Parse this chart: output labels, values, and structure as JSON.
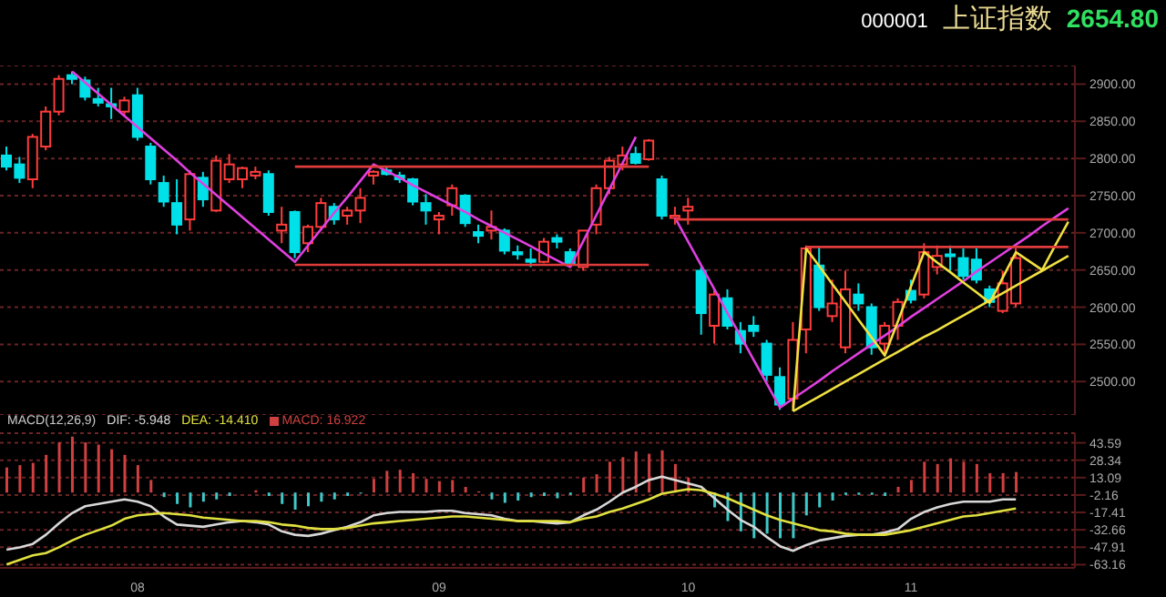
{
  "chart_data": [
    {
      "type": "candlestick",
      "title": "上证指数",
      "subtitle": "000001",
      "annotations": [
        "2654.80"
      ],
      "categories": [
        null,
        null,
        null,
        null,
        null,
        null,
        null,
        null,
        null,
        null,
        null,
        null,
        null,
        null,
        null,
        null,
        null,
        null,
        null,
        null,
        null,
        null,
        null,
        null,
        null,
        null,
        null,
        null,
        null,
        null,
        null,
        null,
        null,
        null,
        null,
        null,
        null,
        null,
        null,
        null,
        null,
        null,
        null,
        null,
        null,
        null,
        null,
        null,
        null,
        null,
        null,
        null,
        null,
        null,
        null,
        null,
        null,
        null,
        null,
        null,
        null,
        null,
        null,
        null,
        null,
        null,
        null,
        null,
        null,
        null,
        null,
        null,
        null,
        null,
        null,
        null,
        null,
        null,
        null,
        null,
        null,
        null
      ],
      "ohlc": [
        [
          2804,
          2816,
          2784,
          2789
        ],
        [
          2792,
          2802,
          2767,
          2774
        ],
        [
          2772,
          2833,
          2760,
          2829
        ],
        [
          2816,
          2870,
          2811,
          2863
        ],
        [
          2863,
          2912,
          2858,
          2907
        ],
        [
          2912,
          2917,
          2900,
          2907
        ],
        [
          2905,
          2910,
          2878,
          2883
        ],
        [
          2880,
          2895,
          2870,
          2875
        ],
        [
          2873,
          2895,
          2853,
          2870
        ],
        [
          2863,
          2883,
          2858,
          2878
        ],
        [
          2885,
          2895,
          2824,
          2829
        ],
        [
          2816,
          2821,
          2765,
          2772
        ],
        [
          2767,
          2777,
          2735,
          2742
        ],
        [
          2740,
          2772,
          2698,
          2711
        ],
        [
          2718,
          2784,
          2703,
          2779
        ],
        [
          2774,
          2782,
          2735,
          2745
        ],
        [
          2730,
          2804,
          2728,
          2797
        ],
        [
          2772,
          2806,
          2767,
          2792
        ],
        [
          2772,
          2789,
          2760,
          2787
        ],
        [
          2777,
          2789,
          2772,
          2782
        ],
        [
          2779,
          2784,
          2723,
          2728
        ],
        [
          2703,
          2735,
          2686,
          2711
        ],
        [
          2728,
          2730,
          2666,
          2674
        ],
        [
          2686,
          2711,
          2674,
          2708
        ],
        [
          2708,
          2747,
          2703,
          2740
        ],
        [
          2735,
          2740,
          2711,
          2718
        ],
        [
          2723,
          2735,
          2711,
          2730
        ],
        [
          2730,
          2760,
          2713,
          2747
        ],
        [
          2777,
          2784,
          2765,
          2782
        ],
        [
          2784,
          2789,
          2777,
          2779
        ],
        [
          2777,
          2782,
          2767,
          2772
        ],
        [
          2772,
          2774,
          2737,
          2742
        ],
        [
          2740,
          2752,
          2711,
          2730
        ],
        [
          2718,
          2728,
          2698,
          2723
        ],
        [
          2737,
          2765,
          2723,
          2760
        ],
        [
          2750,
          2752,
          2708,
          2713
        ],
        [
          2701,
          2711,
          2686,
          2696
        ],
        [
          2703,
          2730,
          2691,
          2708
        ],
        [
          2703,
          2706,
          2671,
          2676
        ],
        [
          2674,
          2683,
          2664,
          2671
        ],
        [
          2664,
          2679,
          2654,
          2661
        ],
        [
          2661,
          2693,
          2659,
          2688
        ],
        [
          2693,
          2698,
          2679,
          2688
        ],
        [
          2674,
          2679,
          2654,
          2659
        ],
        [
          2654,
          2703,
          2649,
          2703
        ],
        [
          2711,
          2765,
          2698,
          2760
        ],
        [
          2760,
          2802,
          2752,
          2797
        ],
        [
          2792,
          2816,
          2784,
          2804
        ],
        [
          2806,
          2816,
          2792,
          2794
        ],
        [
          2799,
          2826,
          2797,
          2824
        ],
        [
          2772,
          2777,
          2718,
          2723
        ],
        [
          2720,
          2735,
          2711,
          2723
        ],
        [
          2730,
          2747,
          2711,
          2735
        ],
        [
          2649,
          2654,
          2563,
          2592
        ],
        [
          2575,
          2624,
          2551,
          2617
        ],
        [
          2612,
          2624,
          2570,
          2575
        ],
        [
          2568,
          2580,
          2538,
          2551
        ],
        [
          2575,
          2588,
          2560,
          2568
        ],
        [
          2551,
          2556,
          2501,
          2509
        ],
        [
          2506,
          2519,
          2462,
          2469
        ],
        [
          2477,
          2580,
          2465,
          2556
        ],
        [
          2570,
          2683,
          2538,
          2679
        ],
        [
          2656,
          2681,
          2595,
          2600
        ],
        [
          2588,
          2637,
          2580,
          2605
        ],
        [
          2546,
          2649,
          2538,
          2624
        ],
        [
          2617,
          2632,
          2595,
          2605
        ],
        [
          2600,
          2605,
          2536,
          2546
        ],
        [
          2551,
          2580,
          2536,
          2575
        ],
        [
          2575,
          2612,
          2556,
          2607
        ],
        [
          2622,
          2637,
          2605,
          2610
        ],
        [
          2617,
          2686,
          2612,
          2674
        ],
        [
          2654,
          2683,
          2644,
          2669
        ],
        [
          2671,
          2683,
          2649,
          2669
        ],
        [
          2666,
          2679,
          2637,
          2642
        ],
        [
          2664,
          2679,
          2632,
          2637
        ],
        [
          2624,
          2629,
          2600,
          2607
        ],
        [
          2595,
          2649,
          2592,
          2632
        ],
        [
          2605,
          2679,
          2600,
          2666
        ],
        null,
        null,
        null,
        null
      ],
      "series": [
        {
          "type": "line",
          "color": "#e040e0",
          "values": [
            null,
            null,
            null,
            null,
            null,
            2917,
            2902,
            2887,
            2872,
            2857,
            2842,
            2827,
            2812,
            2797,
            2781,
            2766,
            2751,
            2736,
            2721,
            2706,
            2691,
            2676,
            2661,
            2683,
            2705,
            2727,
            2748,
            2770,
            2792,
            2783,
            2774,
            2764,
            2755,
            2746,
            2737,
            2728,
            2718,
            2709,
            2700,
            2691,
            2682,
            2672,
            2663,
            2654,
            2689,
            2724,
            2759,
            2794,
            2829,
            null,
            null,
            2720,
            2688,
            2656,
            2624,
            2592,
            2561,
            2529,
            2497,
            2465,
            2477,
            2489,
            2501,
            2514,
            2526,
            2538,
            2550,
            2562,
            2574,
            2587,
            2599,
            2611,
            2623,
            2635,
            2648,
            2660,
            2672,
            2684,
            2696,
            2709,
            2721,
            2733
          ]
        },
        {
          "type": "line",
          "color": "#f0e040",
          "values": [
            null,
            null,
            null,
            null,
            null,
            null,
            null,
            null,
            null,
            null,
            null,
            null,
            null,
            null,
            null,
            null,
            null,
            null,
            null,
            null,
            null,
            null,
            null,
            null,
            null,
            null,
            null,
            null,
            null,
            null,
            null,
            null,
            null,
            null,
            null,
            null,
            null,
            null,
            null,
            null,
            null,
            null,
            null,
            null,
            null,
            null,
            null,
            null,
            null,
            null,
            null,
            null,
            null,
            null,
            null,
            null,
            null,
            null,
            null,
            null,
            2460,
            2679,
            2655,
            2631,
            2607,
            2583,
            2559,
            2535,
            2581,
            2628,
            2674,
            2660,
            2647,
            2633,
            2620,
            2606,
            2640,
            2674,
            2662,
            2650,
            2683,
            2715
          ]
        },
        {
          "type": "line",
          "color": "#f0e040",
          "values": [
            null,
            null,
            null,
            null,
            null,
            null,
            null,
            null,
            null,
            null,
            null,
            null,
            null,
            null,
            null,
            null,
            null,
            null,
            null,
            null,
            null,
            null,
            null,
            null,
            null,
            null,
            null,
            null,
            null,
            null,
            null,
            null,
            null,
            null,
            null,
            null,
            null,
            null,
            null,
            null,
            null,
            null,
            null,
            null,
            null,
            null,
            null,
            null,
            null,
            null,
            null,
            null,
            null,
            null,
            null,
            null,
            null,
            null,
            null,
            null,
            2460,
            2470,
            2480,
            2490,
            2500,
            2510,
            2520,
            2530,
            2540,
            2550,
            2560,
            2569,
            2579,
            2589,
            2599,
            2609,
            2619,
            2629,
            2639,
            2649,
            2659,
            2669
          ]
        },
        {
          "type": "line",
          "color": "#e03c3c",
          "values": [
            null,
            null,
            null,
            null,
            null,
            null,
            null,
            null,
            null,
            null,
            null,
            null,
            null,
            null,
            null,
            null,
            null,
            null,
            null,
            null,
            null,
            null,
            2789,
            2789,
            2789,
            2789,
            2789,
            2789,
            2789,
            2789,
            2789,
            2789,
            2789,
            2789,
            2789,
            2789,
            2789,
            2789,
            2789,
            2789,
            2789,
            2789,
            2789,
            2789,
            2789,
            2789,
            2789,
            2789,
            2789,
            2789,
            null,
            null,
            null,
            null,
            null,
            null,
            null,
            null,
            null,
            null,
            null,
            null,
            null,
            null,
            null,
            null,
            null,
            null,
            null,
            null,
            null,
            null,
            null,
            null,
            null,
            null,
            null,
            null,
            null,
            null,
            null,
            null
          ]
        },
        {
          "type": "line",
          "color": "#e03c3c",
          "values": [
            null,
            null,
            null,
            null,
            null,
            null,
            null,
            null,
            null,
            null,
            null,
            null,
            null,
            null,
            null,
            null,
            null,
            null,
            null,
            null,
            null,
            null,
            2657,
            2657,
            2657,
            2657,
            2657,
            2657,
            2657,
            2657,
            2657,
            2657,
            2657,
            2657,
            2657,
            2657,
            2657,
            2657,
            2657,
            2657,
            2657,
            2657,
            2657,
            2657,
            2657,
            2657,
            2657,
            2657,
            2657,
            2657,
            null,
            null,
            null,
            null,
            null,
            null,
            null,
            null,
            null,
            null,
            null,
            null,
            null,
            null,
            null,
            null,
            null,
            null,
            null,
            null,
            null,
            null,
            null,
            null,
            null,
            null,
            null,
            null,
            null,
            null,
            null,
            null
          ]
        },
        {
          "type": "line",
          "color": "#e03c3c",
          "values": [
            null,
            null,
            null,
            null,
            null,
            null,
            null,
            null,
            null,
            null,
            null,
            null,
            null,
            null,
            null,
            null,
            null,
            null,
            null,
            null,
            null,
            null,
            null,
            null,
            null,
            null,
            null,
            null,
            null,
            null,
            null,
            null,
            null,
            null,
            null,
            null,
            null,
            null,
            null,
            null,
            null,
            null,
            null,
            null,
            null,
            null,
            null,
            null,
            null,
            null,
            null,
            2718,
            2718,
            2718,
            2718,
            2718,
            2718,
            2718,
            2718,
            2718,
            2718,
            2718,
            2718,
            2718,
            2718,
            2718,
            2718,
            2718,
            2718,
            2718,
            2718,
            2718,
            2718,
            2718,
            2718,
            2718,
            2718,
            2718,
            2718,
            2718,
            2718,
            2718
          ]
        },
        {
          "type": "line",
          "color": "#e03c3c",
          "values": [
            null,
            null,
            null,
            null,
            null,
            null,
            null,
            null,
            null,
            null,
            null,
            null,
            null,
            null,
            null,
            null,
            null,
            null,
            null,
            null,
            null,
            null,
            null,
            null,
            null,
            null,
            null,
            null,
            null,
            null,
            null,
            null,
            null,
            null,
            null,
            null,
            null,
            null,
            null,
            null,
            null,
            null,
            null,
            null,
            null,
            null,
            null,
            null,
            null,
            null,
            null,
            null,
            null,
            null,
            null,
            null,
            null,
            null,
            null,
            null,
            null,
            2681,
            2681,
            2681,
            2681,
            2681,
            2681,
            2681,
            2681,
            2681,
            2681,
            2681,
            2681,
            2681,
            2681,
            2681,
            2681,
            2681,
            2681,
            2681,
            2681,
            2681
          ]
        }
      ],
      "ylim": [
        2455,
        2925
      ],
      "yticks": [
        {
          "value": 2500,
          "label": "2500.00"
        },
        {
          "value": 2550,
          "label": "2550.00"
        },
        {
          "value": 2600,
          "label": "2600.00"
        },
        {
          "value": 2650,
          "label": "2650.00"
        },
        {
          "value": 2700,
          "label": "2700.00"
        },
        {
          "value": 2750,
          "label": "2750.00"
        },
        {
          "value": 2800,
          "label": "2800.00"
        },
        {
          "value": 2850,
          "label": "2850.00"
        },
        {
          "value": 2900,
          "label": "2900.00"
        }
      ],
      "tick_labels": "y",
      "grid": "y"
    },
    {
      "type": "bar",
      "legend_title": "MACD(12,26,9)",
      "legend": "top left",
      "grid": "y",
      "categories": [
        null,
        null,
        null,
        null,
        null,
        null,
        null,
        null,
        null,
        null,
        "08",
        null,
        null,
        null,
        null,
        null,
        null,
        null,
        null,
        null,
        null,
        null,
        null,
        null,
        null,
        null,
        null,
        null,
        null,
        null,
        null,
        null,
        null,
        "09",
        null,
        null,
        null,
        null,
        null,
        null,
        null,
        null,
        null,
        null,
        null,
        null,
        null,
        null,
        null,
        null,
        null,
        null,
        "10",
        null,
        null,
        null,
        null,
        null,
        null,
        null,
        null,
        null,
        null,
        null,
        null,
        null,
        null,
        null,
        null,
        "11",
        null,
        null,
        null,
        null,
        null,
        null,
        null,
        null,
        null,
        null,
        null,
        null
      ],
      "series": [
        {
          "name": "DIF: -5.948",
          "type": "line",
          "color": "#d8d8d8",
          "values": [
            -50,
            -48,
            -45,
            -37,
            -27,
            -18,
            -12,
            -10,
            -8,
            -6,
            -8,
            -12,
            -21,
            -28,
            -29,
            -30,
            -28,
            -26,
            -25,
            -26,
            -28,
            -34,
            -37,
            -38,
            -36,
            -33,
            -30,
            -26,
            -20,
            -18,
            -17,
            -17,
            -17,
            -16,
            -16,
            -18,
            -19,
            -20,
            -23,
            -25,
            -25,
            -26,
            -27,
            -26,
            -20,
            -15,
            -8,
            0,
            5,
            11,
            14,
            11,
            8,
            5,
            -5,
            -15,
            -24,
            -30,
            -39,
            -47,
            -51,
            -46,
            -42,
            -40,
            -38,
            -37,
            -37,
            -35,
            -32,
            -23,
            -17,
            -13,
            -10,
            -8,
            -8,
            -8,
            -6,
            -6,
            null,
            null,
            null,
            null
          ]
        },
        {
          "name": "DEA: -14.410",
          "type": "line",
          "color": "#e0e040",
          "values": [
            -63,
            -59,
            -55,
            -53,
            -48,
            -42,
            -37,
            -33,
            -29,
            -23,
            -20,
            -19,
            -18,
            -19,
            -20,
            -22,
            -23,
            -24,
            -25,
            -25,
            -26,
            -28,
            -29,
            -31,
            -32,
            -32,
            -31,
            -29,
            -27,
            -26,
            -25,
            -24,
            -23,
            -22,
            -21,
            -21,
            -22,
            -23,
            -24,
            -25,
            -25,
            -25,
            -25,
            -26,
            -23,
            -21,
            -17,
            -14,
            -10,
            -6,
            -1,
            1,
            3,
            2,
            -1,
            -5,
            -10,
            -15,
            -20,
            -24,
            -27,
            -30,
            -33,
            -34,
            -36,
            -37,
            -37,
            -37,
            -35,
            -33,
            -30,
            -27,
            -24,
            -21,
            -20,
            -18,
            -16,
            -14,
            null,
            null,
            null,
            null
          ]
        },
        {
          "name": "MACD: 16.922",
          "type": "bar",
          "color": "#d04040",
          "values": [
            22,
            24,
            26,
            33,
            44,
            49,
            44,
            42,
            38,
            33,
            24,
            11,
            -4,
            -10,
            -13,
            -8,
            -6,
            -3,
            null,
            2,
            -3,
            -10,
            -15,
            -12,
            -8,
            -6,
            -3,
            -1,
            12,
            19,
            20,
            17,
            12,
            10,
            11,
            5,
            1,
            -6,
            -9,
            -7,
            -4,
            -3,
            -5,
            -2,
            13,
            16,
            27,
            31,
            36,
            34,
            37,
            25,
            13,
            null,
            -13,
            -25,
            -34,
            -40,
            -36,
            -40,
            -40,
            -20,
            -13,
            -7,
            -2,
            -2,
            -2,
            -3,
            5,
            11,
            27,
            25,
            30,
            27,
            25,
            17,
            17,
            18,
            null,
            null,
            null,
            null
          ],
          "colors": [
            "#d04040",
            "#d04040",
            "#d04040",
            "#d04040",
            "#d04040",
            "#d04040",
            "#d04040",
            "#d04040",
            "#d04040",
            "#d04040",
            "#d04040",
            "#d04040",
            "#40c8c8",
            "#40c8c8",
            "#40c8c8",
            "#40c8c8",
            "#40c8c8",
            "#40c8c8",
            "#40c8c8",
            "#d04040",
            "#40c8c8",
            "#40c8c8",
            "#40c8c8",
            "#40c8c8",
            "#40c8c8",
            "#40c8c8",
            "#40c8c8",
            "#40c8c8",
            "#d04040",
            "#d04040",
            "#d04040",
            "#d04040",
            "#d04040",
            "#d04040",
            "#d04040",
            "#d04040",
            "#d04040",
            "#40c8c8",
            "#40c8c8",
            "#40c8c8",
            "#40c8c8",
            "#40c8c8",
            "#40c8c8",
            "#40c8c8",
            "#d04040",
            "#d04040",
            "#d04040",
            "#d04040",
            "#d04040",
            "#d04040",
            "#d04040",
            "#d04040",
            "#d04040",
            "#d04040",
            "#40c8c8",
            "#40c8c8",
            "#40c8c8",
            "#40c8c8",
            "#40c8c8",
            "#40c8c8",
            "#40c8c8",
            "#40c8c8",
            "#40c8c8",
            "#40c8c8",
            "#40c8c8",
            "#40c8c8",
            "#40c8c8",
            "#40c8c8",
            "#d04040",
            "#d04040",
            "#d04040",
            "#d04040",
            "#d04040",
            "#d04040",
            "#d04040",
            "#d04040",
            "#d04040",
            "#d04040",
            null,
            null,
            null,
            null
          ]
        }
      ],
      "ylim": [
        -66,
        52
      ],
      "yticks": [
        -63.16,
        -47.91,
        -32.66,
        -17.41,
        -2.16,
        13.09,
        28.34,
        43.59
      ]
    }
  ]
}
